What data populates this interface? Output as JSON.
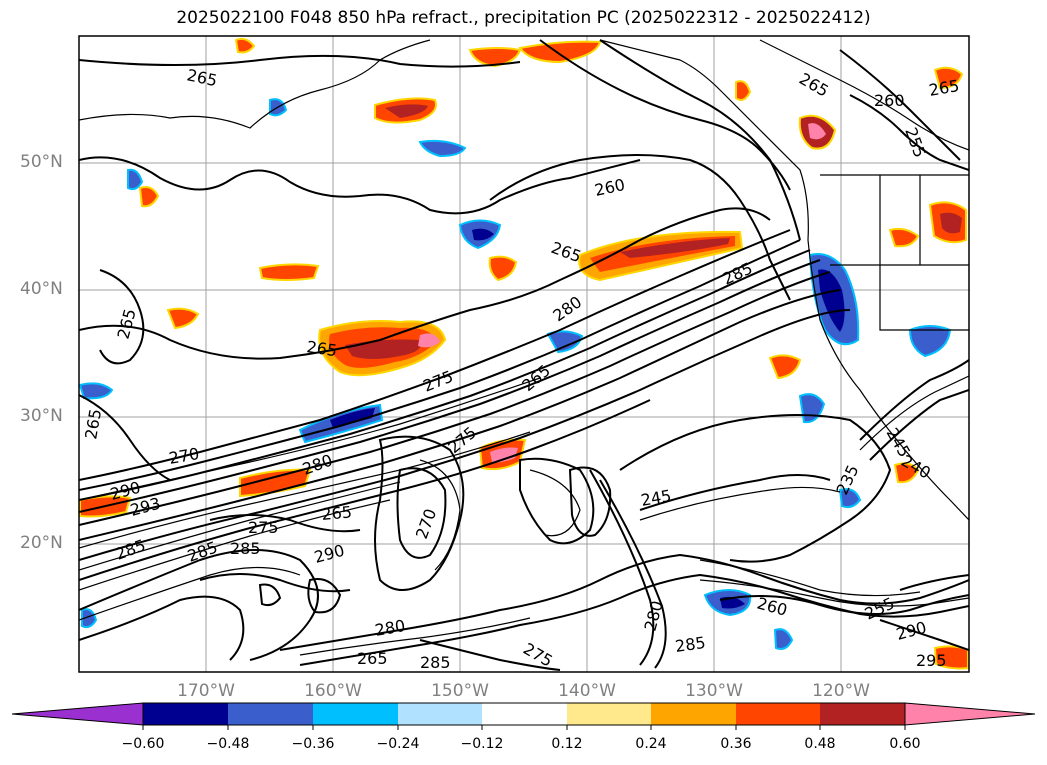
{
  "title": "2025022100 F048 850 hPa refract., precipitation PC (2025022312 - 2025022412)",
  "lat_labels": [
    "50°N",
    "40°N",
    "30°N",
    "20°N"
  ],
  "lon_labels": [
    "170°W",
    "160°W",
    "150°W",
    "140°W",
    "130°W",
    "120°W"
  ],
  "colorbar": {
    "ticks": [
      "−0.60",
      "−0.48",
      "−0.36",
      "−0.24",
      "−0.12",
      "0.12",
      "0.24",
      "0.36",
      "0.48",
      "0.60"
    ],
    "colors": [
      "#9b30d0",
      "#000090",
      "#3a5fcd",
      "#00bfff",
      "#b0e2ff",
      "#ffffff",
      "#ffe98c",
      "#ffa500",
      "#ff4500",
      "#b22222",
      "#ff82ab"
    ]
  },
  "contour_labels": [
    "265",
    "265",
    "260",
    "265",
    "255",
    "260",
    "265",
    "285",
    "280",
    "265",
    "265",
    "265",
    "275",
    "265",
    "275",
    "270",
    "280",
    "290",
    "285",
    "293",
    "265",
    "275",
    "270",
    "285",
    "290",
    "285",
    "245",
    "260",
    "280",
    "285",
    "275",
    "265",
    "285",
    "255",
    "280",
    "290",
    "295",
    "240",
    "245",
    "235"
  ]
}
